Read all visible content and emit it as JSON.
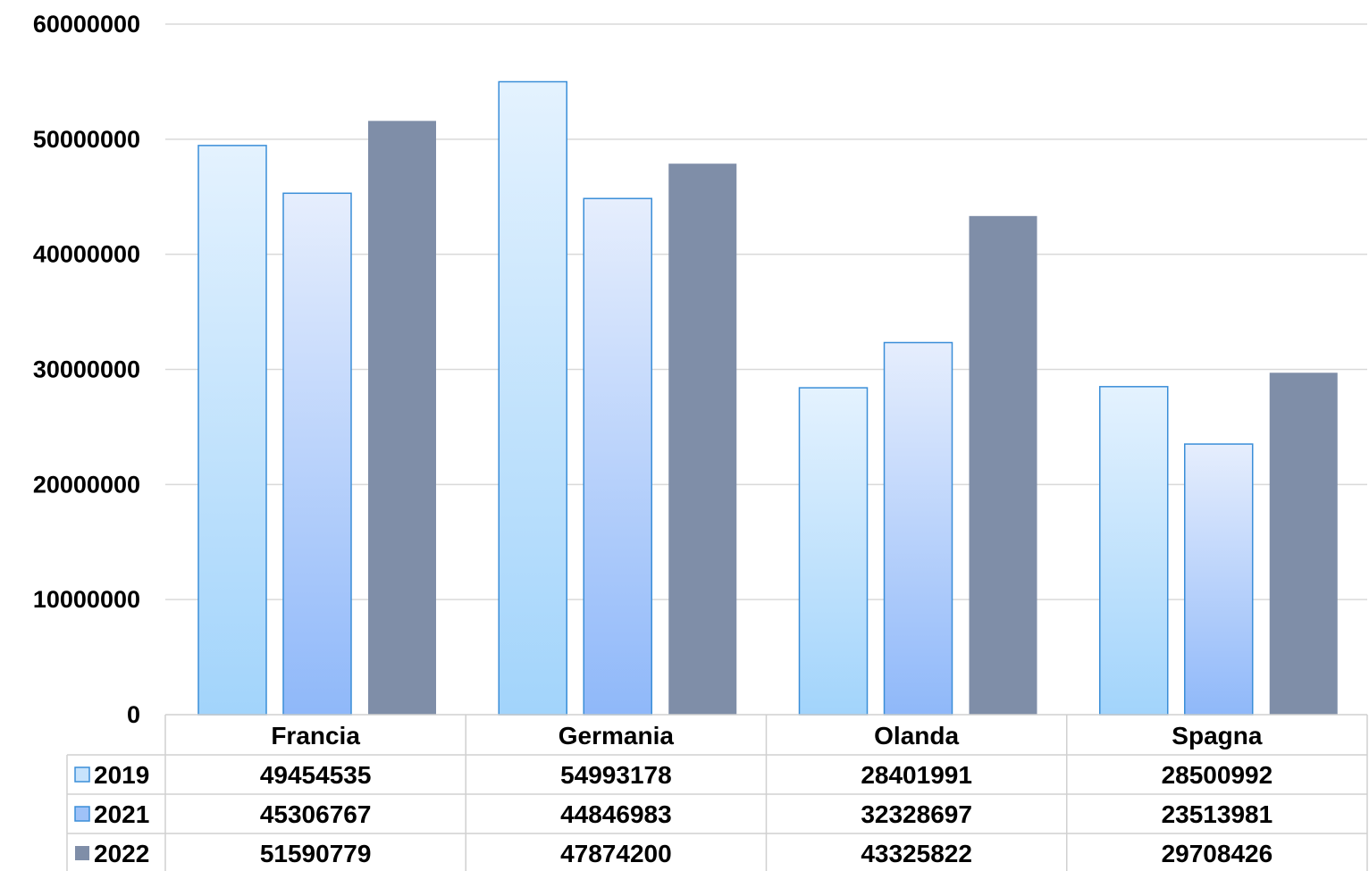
{
  "chart_data": {
    "type": "bar",
    "categories": [
      "Francia",
      "Germania",
      "Olanda",
      "Spagna"
    ],
    "series": [
      {
        "name": "2019",
        "values": [
          49454535,
          54993178,
          28401991,
          28500992
        ]
      },
      {
        "name": "2021",
        "values": [
          45306767,
          44846983,
          32328697,
          23513981
        ]
      },
      {
        "name": "2022",
        "values": [
          51590779,
          47874200,
          43325822,
          29708426
        ]
      }
    ],
    "ylim": [
      0,
      60000000
    ],
    "yticks": [
      "0",
      "10000000",
      "20000000",
      "30000000",
      "40000000",
      "50000000",
      "60000000"
    ],
    "grid": true,
    "legend": "data-table",
    "data_table": true
  },
  "colors": {
    "2019": "#bde0fb",
    "2021": "#a9c7fb",
    "2022": "#7f8ea8",
    "grid": "#d9d9d9",
    "bar_border": "#3a8ed8"
  }
}
